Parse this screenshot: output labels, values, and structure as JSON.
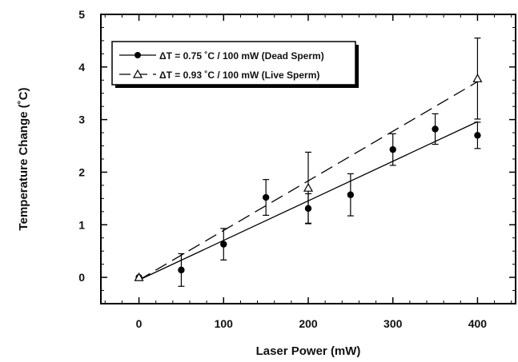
{
  "chart_data": {
    "type": "scatter",
    "xlabel": "Laser Power (mW)",
    "ylabel": "Temperature Change (˚C)",
    "xlim": [
      -45,
      445
    ],
    "ylim": [
      -0.5,
      5
    ],
    "xticks": [
      "0",
      "100",
      "200",
      "300",
      "400"
    ],
    "yticks": [
      "0",
      "1",
      "2",
      "3",
      "4",
      "5"
    ],
    "legend_position": "top-left",
    "grid": false,
    "series": [
      {
        "name": "ΔT = 0.75 ˚C / 100 mW (Dead Sperm)",
        "marker": "filled-circle",
        "line_style": "solid",
        "points": [
          {
            "x": 0,
            "y": 0.0,
            "err": 0.0
          },
          {
            "x": 50,
            "y": 0.14,
            "err": 0.31
          },
          {
            "x": 100,
            "y": 0.63,
            "err": 0.3
          },
          {
            "x": 150,
            "y": 1.52,
            "err": 0.34
          },
          {
            "x": 200,
            "y": 1.31,
            "err": 0.28
          },
          {
            "x": 250,
            "y": 1.57,
            "err": 0.4
          },
          {
            "x": 300,
            "y": 2.43,
            "err": 0.3
          },
          {
            "x": 350,
            "y": 2.82,
            "err": 0.29
          },
          {
            "x": 400,
            "y": 2.7,
            "err": 0.25
          }
        ],
        "fit": {
          "x": [
            0,
            400
          ],
          "y": [
            -0.05,
            2.96
          ]
        }
      },
      {
        "name": "ΔT = 0.93 ˚C / 100 mW (Live Sperm)",
        "marker": "open-triangle",
        "line_style": "dashed",
        "points": [
          {
            "x": 0,
            "y": 0.0,
            "err": 0.0
          },
          {
            "x": 200,
            "y": 1.7,
            "err": 0.68
          },
          {
            "x": 400,
            "y": 3.78,
            "err": 0.77
          }
        ],
        "fit": {
          "x": [
            0,
            400
          ],
          "y": [
            -0.05,
            3.72
          ]
        }
      }
    ]
  }
}
